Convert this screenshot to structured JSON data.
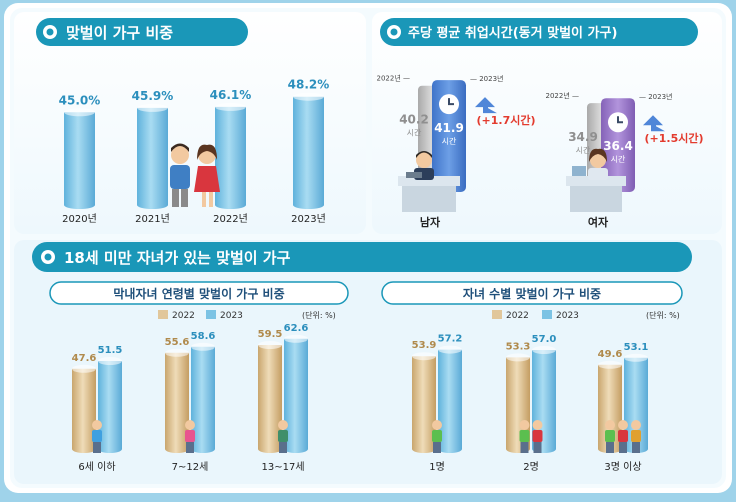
{
  "colors": {
    "teal": "#1a97b8",
    "blue_cyl": "#7cc3e4",
    "tan_cyl": "#e1c79b",
    "grey_cyl": "#b9b9b9",
    "male_bar": "#4f86d8",
    "female_bar": "#9a78c8",
    "red": "#e33b2e",
    "value_blue": "#2c8fbd",
    "value_tan": "#b08a4c",
    "value_grey": "#8f8f8f"
  },
  "sections": {
    "dual_share_title": "맞벌이 가구 비중",
    "weekly_hours_title": "주당 평균 취업시간(동거 맞벌이 가구)",
    "children_title": "18세 미만 자녀가 있는 맞벌이 가구",
    "youngest_age_title": "막내자녀 연령별 맞벌이 가구 비중",
    "child_count_title": "자녀 수별 맞벌이 가구 비중"
  },
  "legend": {
    "y2022": "2022",
    "y2023": "2023",
    "unit": "(단위: %)"
  },
  "icons": [
    "clock-icon",
    "up-arrow-icon",
    "couple-icon",
    "worker-icon",
    "child-icon"
  ],
  "chart_data": [
    {
      "type": "bar",
      "id": "dual_share",
      "categories": [
        "2020년",
        "2021년",
        "2022년",
        "2023년"
      ],
      "value_labels": [
        "45.0%",
        "45.9%",
        "46.1%",
        "48.2%"
      ],
      "values": [
        45.0,
        45.9,
        46.1,
        48.2
      ]
    },
    {
      "type": "bar",
      "id": "weekly_hours",
      "groups": [
        {
          "label": "남자",
          "y2022": 40.2,
          "y2023": 41.9,
          "y2022_label": "40.2",
          "y2023_label": "41.9",
          "unit": "시간",
          "change": "(+1.7시간)"
        },
        {
          "label": "여자",
          "y2022": 34.9,
          "y2023": 36.4,
          "y2022_label": "34.9",
          "y2023_label": "36.4",
          "unit": "시간",
          "change": "(+1.5시간)"
        }
      ],
      "year_labels": {
        "y2022": "2022년",
        "y2023": "2023년"
      }
    },
    {
      "type": "bar",
      "id": "youngest_age",
      "categories": [
        "6세 이하",
        "7~12세",
        "13~17세"
      ],
      "series": [
        {
          "name": "2022",
          "values": [
            47.6,
            55.6,
            59.5
          ],
          "labels": [
            "47.6",
            "55.6",
            "59.5"
          ]
        },
        {
          "name": "2023",
          "values": [
            51.5,
            58.6,
            62.6
          ],
          "labels": [
            "51.5",
            "58.6",
            "62.6"
          ]
        }
      ]
    },
    {
      "type": "bar",
      "id": "child_count",
      "categories": [
        "1명",
        "2명",
        "3명 이상"
      ],
      "series": [
        {
          "name": "2022",
          "values": [
            53.9,
            53.3,
            49.6
          ],
          "labels": [
            "53.9",
            "53.3",
            "49.6"
          ]
        },
        {
          "name": "2023",
          "values": [
            57.2,
            57.0,
            53.1
          ],
          "labels": [
            "57.2",
            "57.0",
            "53.1"
          ]
        }
      ]
    }
  ]
}
